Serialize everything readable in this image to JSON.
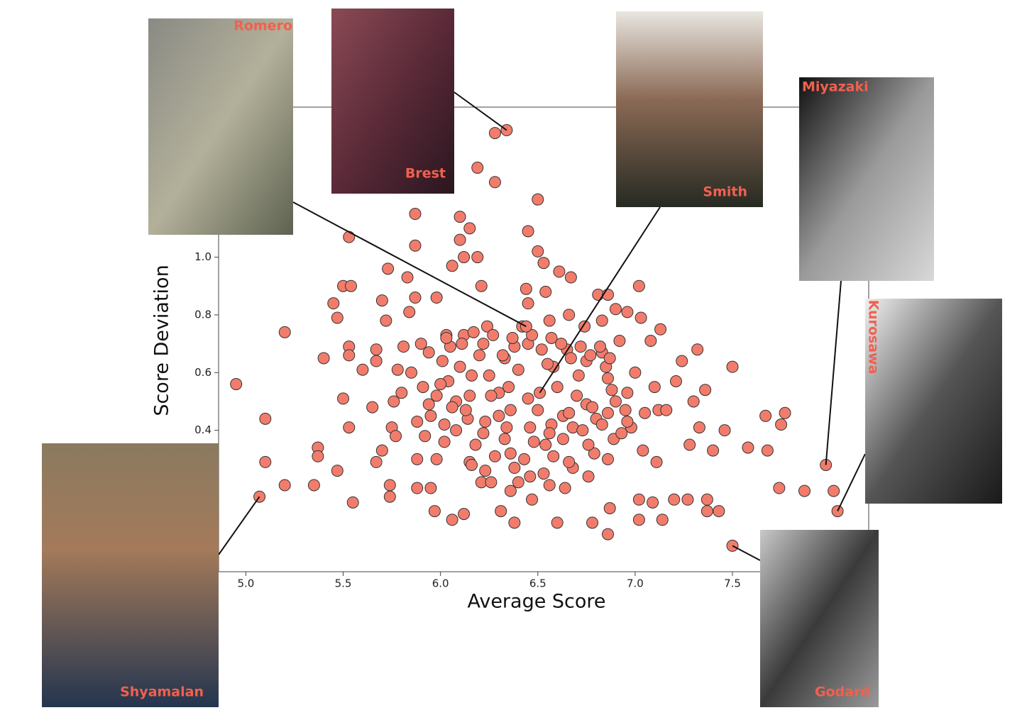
{
  "chart_data": {
    "type": "scatter",
    "xlabel": "Average Score",
    "ylabel": "Score Deviation",
    "color": "#f27c6c",
    "edgecolor": "#333333",
    "label_color": "#f2604e",
    "xlim": [
      4.86,
      8.2
    ],
    "ylim": [
      -0.09,
      1.52
    ],
    "xticks": [
      {
        "value": 5,
        "label": "5.0"
      },
      5.5,
      {
        "value": 6,
        "label": "6.0"
      },
      6.5,
      {
        "value": 7,
        "label": "7.0"
      },
      7.5
    ],
    "yticks": [
      0.4,
      0.6,
      0.8,
      {
        "value": 1,
        "label": "1.0"
      }
    ],
    "x": [
      4.95,
      5.1,
      5.1,
      5.2,
      5.2,
      5.35,
      5.37,
      5.37,
      5.4,
      5.45,
      5.47,
      5.47,
      5.5,
      5.54,
      5.53,
      5.5,
      5.53,
      5.53,
      5.53,
      5.55,
      5.6,
      5.65,
      5.67,
      5.67,
      5.67,
      5.7,
      5.7,
      5.72,
      5.73,
      5.74,
      5.74,
      5.75,
      5.76,
      5.77,
      5.78,
      5.81,
      5.83,
      5.84,
      5.87,
      5.87,
      5.87,
      5.88,
      5.88,
      5.91,
      5.92,
      5.94,
      5.94,
      5.95,
      5.97,
      5.98,
      5.98,
      6.01,
      6.02,
      6.03,
      6.04,
      6.06,
      6.06,
      6.08,
      6.1,
      6.1,
      6.12,
      6.12,
      6.15,
      6.12,
      6.14,
      6.15,
      6.16,
      6.19,
      6.19,
      6.21,
      6.21,
      6.23,
      6.22,
      6.24,
      6.28,
      6.28,
      6.3,
      6.31,
      6.33,
      6.34,
      6.36,
      6.38,
      6.38,
      6.4,
      6.45,
      6.44,
      6.45,
      6.45,
      6.47,
      6.5,
      6.5,
      6.53,
      6.54,
      6.54,
      6.56,
      6.57,
      6.58,
      6.6,
      6.61,
      6.63,
      6.64,
      6.66,
      6.67,
      6.68,
      6.71,
      6.74,
      6.75,
      6.78,
      6.79,
      6.81,
      6.86,
      6.83,
      6.83,
      6.86,
      6.86,
      6.86,
      6.87,
      6.89,
      6.9,
      6.92,
      6.96,
      6.96,
      6.98,
      7.02,
      7.02,
      7.02,
      7.03,
      7.04,
      7.05,
      7.08,
      7.09,
      7.11,
      7.12,
      7.13,
      7.14,
      7.16,
      7.2,
      7.21,
      7.24,
      7.27,
      7.28,
      7.3,
      7.32,
      7.33,
      7.36,
      7.37,
      7.37,
      7.4,
      7.43,
      7.46,
      7.5,
      7.58,
      7.67,
      7.68,
      7.74,
      7.75,
      7.77,
      7.87,
      8.02,
      6.0,
      6.05,
      6.1,
      6.15,
      6.2,
      6.25,
      6.3,
      6.35,
      6.4,
      6.45,
      6.5,
      6.55,
      6.6,
      6.65,
      6.7,
      6.75,
      6.8,
      6.85,
      6.9,
      6.95,
      5.95,
      6.02,
      6.08,
      6.13,
      6.18,
      6.23,
      6.28,
      6.33,
      6.38,
      6.43,
      6.48,
      6.53,
      6.58,
      6.63,
      6.68,
      6.73,
      6.78,
      6.83,
      6.88,
      6.93,
      6.03,
      6.11,
      6.17,
      6.22,
      6.27,
      6.32,
      6.37,
      6.42,
      6.47,
      6.52,
      6.57,
      6.62,
      6.67,
      6.72,
      6.77,
      6.82,
      6.87,
      5.85,
      5.8,
      5.9,
      6.26,
      6.36,
      6.46,
      6.56,
      6.66,
      6.76,
      6.86,
      6.96,
      7.0,
      7.1,
      6.16,
      6.26,
      6.36,
      6.46,
      6.56,
      6.66,
      6.76,
      6.06,
      5.98,
      5.88
    ],
    "values": [
      0.56,
      0.44,
      0.29,
      0.74,
      0.21,
      0.21,
      0.34,
      0.31,
      0.65,
      0.84,
      0.79,
      0.26,
      0.9,
      0.9,
      1.07,
      0.51,
      0.41,
      0.69,
      0.66,
      0.15,
      0.61,
      0.48,
      0.29,
      0.68,
      0.64,
      0.85,
      0.33,
      0.78,
      0.96,
      0.21,
      0.17,
      0.41,
      0.5,
      0.38,
      0.61,
      0.69,
      0.93,
      0.81,
      1.15,
      1.04,
      0.86,
      0.3,
      0.2,
      0.55,
      0.38,
      0.67,
      0.49,
      0.2,
      0.12,
      0.86,
      0.3,
      0.64,
      0.42,
      0.73,
      0.57,
      0.97,
      0.09,
      0.5,
      1.14,
      1.06,
      0.73,
      1.0,
      1.1,
      0.11,
      0.44,
      0.29,
      0.59,
      1.31,
      1.0,
      0.9,
      0.22,
      0.26,
      0.39,
      0.76,
      1.43,
      1.26,
      0.53,
      0.12,
      0.65,
      0.41,
      0.32,
      0.08,
      0.69,
      0.22,
      1.09,
      0.89,
      0.84,
      0.51,
      0.16,
      1.2,
      1.02,
      0.98,
      0.88,
      0.35,
      0.78,
      0.42,
      0.62,
      0.08,
      0.95,
      0.45,
      0.2,
      0.8,
      0.93,
      0.41,
      0.59,
      0.76,
      0.49,
      0.08,
      0.32,
      0.87,
      0.87,
      0.78,
      0.67,
      0.58,
      0.46,
      0.04,
      0.13,
      0.37,
      0.82,
      0.71,
      0.81,
      0.53,
      0.41,
      0.9,
      0.16,
      0.09,
      0.79,
      0.33,
      0.46,
      0.71,
      0.15,
      0.29,
      0.47,
      0.75,
      0.09,
      0.47,
      0.16,
      0.57,
      0.64,
      0.16,
      0.35,
      0.5,
      0.68,
      0.41,
      0.54,
      0.16,
      0.12,
      0.33,
      0.12,
      0.4,
      0.62,
      0.34,
      0.45,
      0.33,
      0.2,
      0.42,
      0.46,
      0.19,
      0.19,
      0.56,
      0.69,
      0.62,
      0.52,
      0.66,
      0.59,
      0.45,
      0.55,
      0.61,
      0.7,
      0.47,
      0.63,
      0.55,
      0.68,
      0.52,
      0.64,
      0.44,
      0.62,
      0.5,
      0.47,
      0.45,
      0.36,
      0.4,
      0.47,
      0.35,
      0.43,
      0.31,
      0.37,
      0.27,
      0.3,
      0.36,
      0.25,
      0.31,
      0.37,
      0.27,
      0.4,
      0.48,
      0.42,
      0.54,
      0.39,
      0.72,
      0.7,
      0.74,
      0.7,
      0.73,
      0.66,
      0.72,
      0.76,
      0.73,
      0.68,
      0.72,
      0.7,
      0.65,
      0.69,
      0.66,
      0.69,
      0.65,
      0.6,
      0.53,
      0.7,
      0.52,
      0.47,
      0.41,
      0.39,
      0.46,
      0.35,
      0.3,
      0.43,
      0.6,
      0.55,
      0.28,
      0.22,
      0.19,
      0.24,
      0.21,
      0.29,
      0.24,
      0.48,
      0.52,
      0.43
    ],
    "annotations": [
      {
        "text": "Romero",
        "x": 6.44,
        "y": 0.76
      },
      {
        "text": "Brest",
        "x": 6.34,
        "y": 1.44
      },
      {
        "text": "Smith",
        "x": 6.51,
        "y": 0.53
      },
      {
        "text": "Miyazaki",
        "x": 7.98,
        "y": 0.28
      },
      {
        "text": "Kurosawa",
        "x": 8.04,
        "y": 0.12
      },
      {
        "text": "Godard",
        "x": 7.5,
        "y": 0.0
      },
      {
        "text": "Shyamalan",
        "x": 5.07,
        "y": 0.17
      }
    ]
  }
}
